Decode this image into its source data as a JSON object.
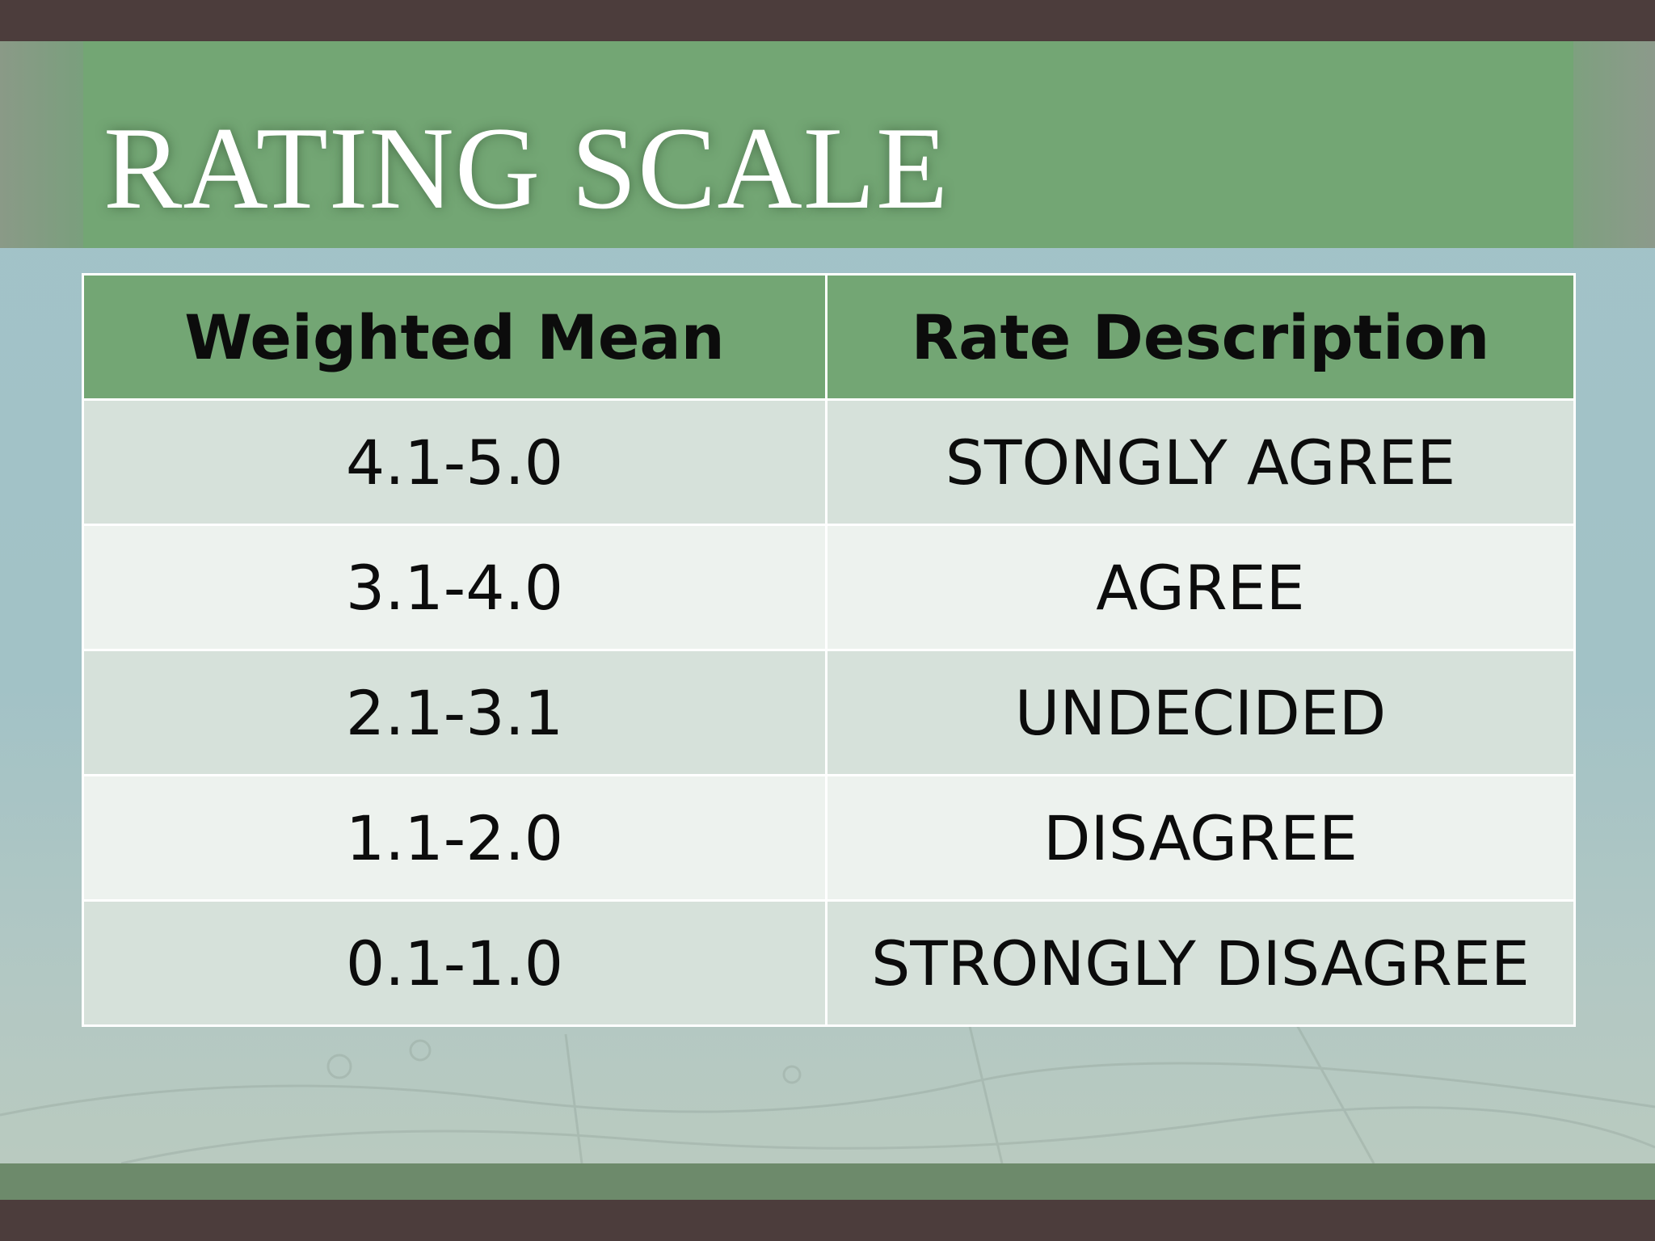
{
  "slide": {
    "title": "RATING SCALE"
  },
  "table": {
    "headers": [
      "Weighted Mean",
      "Rate Description"
    ],
    "rows": [
      [
        "4.1-5.0",
        "STONGLY AGREE"
      ],
      [
        "3.1-4.0",
        "AGREE"
      ],
      [
        "2.1-3.1",
        "UNDECIDED"
      ],
      [
        "1.1-2.0",
        "DISAGREE"
      ],
      [
        "0.1-1.0",
        "STRONGLY DISAGREE"
      ]
    ]
  },
  "colors": {
    "title_band": "#73a674",
    "frame": "#4c3d3c",
    "row_odd": "#d6e1da",
    "row_even": "#edf2ee",
    "background": "#a2c3c9"
  }
}
